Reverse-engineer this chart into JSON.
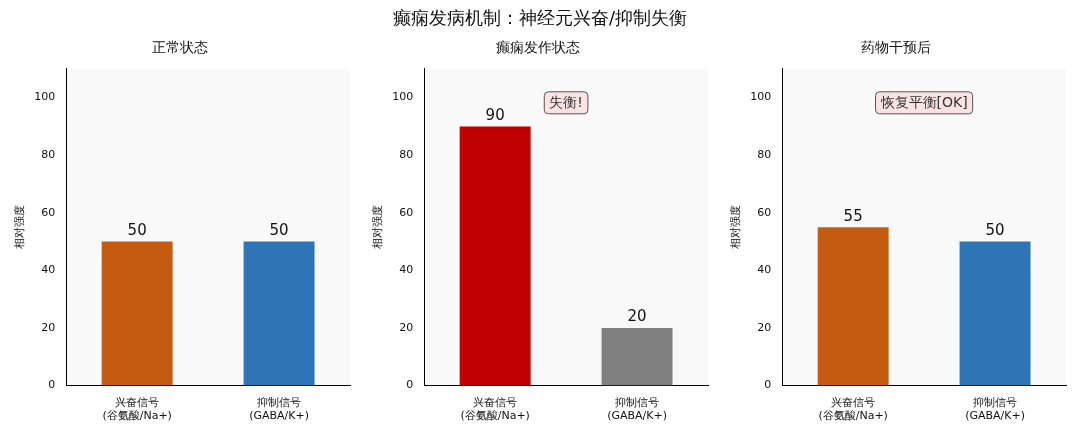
{
  "chart_data": [
    {
      "type": "other",
      "title": "癫痫发病机制：神经元兴奋/抑制失衡"
    },
    {
      "type": "bar",
      "title": "正常状态",
      "ylabel": "相对强度",
      "categories": [
        "兴奋信号\n(谷氨酸/Na+)",
        "抑制信号\n(GABA/K+)"
      ],
      "values": [
        50,
        50
      ],
      "colors": [
        "#c55a11",
        "#2e75b6"
      ],
      "ylim": [
        0,
        110
      ],
      "yticks": [
        0,
        20,
        40,
        60,
        80,
        100
      ],
      "data_labels": true,
      "grid": false,
      "legend": false
    },
    {
      "type": "bar",
      "title": "癫痫发作状态",
      "ylabel": "相对强度",
      "categories": [
        "兴奋信号\n(谷氨酸/Na+)",
        "抑制信号\n(GABA/K+)"
      ],
      "values": [
        90,
        20
      ],
      "colors": [
        "#c00000",
        "#808080"
      ],
      "ylim": [
        0,
        110
      ],
      "yticks": [
        0,
        20,
        40,
        60,
        80,
        100
      ],
      "data_labels": true,
      "grid": false,
      "legend": false,
      "annotations": [
        "失衡!"
      ]
    },
    {
      "type": "bar",
      "title": "药物干预后",
      "ylabel": "相对强度",
      "categories": [
        "兴奋信号\n(谷氨酸/Na+)",
        "抑制信号\n(GABA/K+)"
      ],
      "values": [
        55,
        50
      ],
      "colors": [
        "#c55a11",
        "#2e75b6"
      ],
      "ylim": [
        0,
        110
      ],
      "yticks": [
        0,
        20,
        40,
        60,
        80,
        100
      ],
      "data_labels": true,
      "grid": false,
      "legend": false,
      "annotations": [
        "恢复平衡[OK]"
      ]
    }
  ]
}
